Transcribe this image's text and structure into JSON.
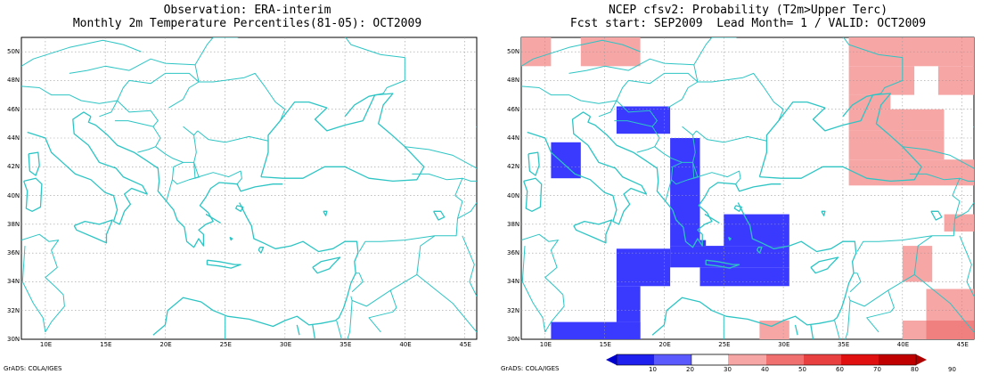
{
  "left_panel": {
    "title_line1": "Observation: ERA-interim",
    "title_line2": "Monthly 2m Temperature Percentiles(81-05): OCT2009",
    "credit": "GrADS: COLA/IGES"
  },
  "right_panel": {
    "title_line1": "NCEP cfsv2: Probability (T2m>Upper Terc)",
    "title_line2": "Fcst start: SEP2009  Lead Month= 1 / VALID: OCT2009",
    "credit": "GrADS: COLA/IGES"
  },
  "axes": {
    "lon_ticks": [
      "10E",
      "15E",
      "20E",
      "25E",
      "30E",
      "35E",
      "40E",
      "45E"
    ],
    "lat_ticks": [
      "50N",
      "48N",
      "46N",
      "44N",
      "42N",
      "40N",
      "38N",
      "36N",
      "34N",
      "32N",
      "30N"
    ]
  },
  "colors": {
    "coast": "#2ec4c4",
    "grid": "#9a9a9a",
    "blue": "#3a3aff",
    "pink_light": "#f7a6a6",
    "pink_mid": "#f08080",
    "red": "#e02020"
  },
  "colorbar": {
    "labels": [
      "10",
      "20",
      "30",
      "40",
      "50",
      "60",
      "70",
      "80",
      "90"
    ]
  }
}
